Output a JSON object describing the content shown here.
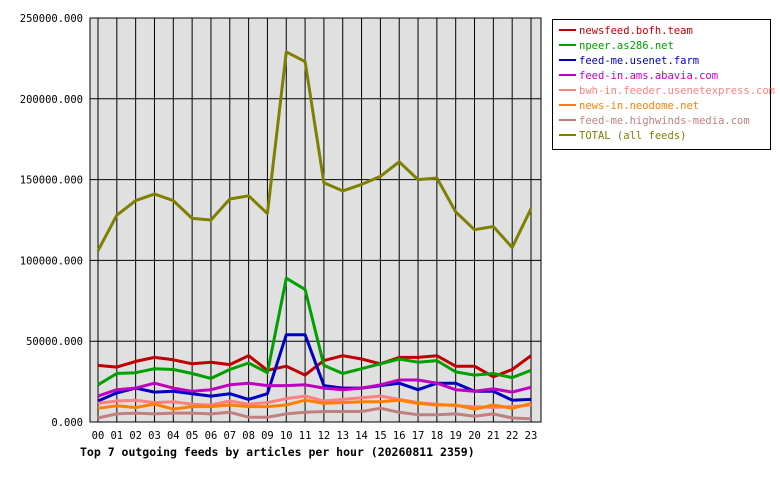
{
  "chart_data": {
    "type": "line",
    "title": "Top 7 outgoing feeds by articles per hour (20260811 2359)",
    "x": [
      "00",
      "01",
      "02",
      "03",
      "04",
      "05",
      "06",
      "07",
      "08",
      "09",
      "10",
      "11",
      "12",
      "13",
      "14",
      "15",
      "16",
      "17",
      "18",
      "19",
      "20",
      "21",
      "22",
      "23"
    ],
    "ylim": [
      0,
      250000
    ],
    "yticks": [
      "0.000",
      "50000.000",
      "100000.000",
      "150000.000",
      "200000.000",
      "250000.000"
    ],
    "ytick_values": [
      0,
      50000,
      100000,
      150000,
      200000,
      250000
    ],
    "grid": true,
    "legend_position": "top-right",
    "series": [
      {
        "name": "newsfeed.bofh.team",
        "color": "#c00000",
        "values": [
          35000,
          34000,
          37500,
          40000,
          38500,
          36000,
          37000,
          35500,
          41000,
          32000,
          34500,
          29000,
          38000,
          41000,
          39000,
          36000,
          40000,
          40000,
          41000,
          34500,
          34500,
          28000,
          32500,
          41000
        ]
      },
      {
        "name": "npeer.as286.net",
        "color": "#00a000",
        "values": [
          23000,
          30000,
          30500,
          33000,
          32500,
          30000,
          27000,
          32500,
          36500,
          30500,
          89000,
          82000,
          35000,
          30000,
          33000,
          36000,
          39000,
          37000,
          38000,
          31000,
          29000,
          30000,
          27500,
          32000
        ]
      },
      {
        "name": "feed-me.usenet.farm",
        "color": "#0000c0",
        "values": [
          13000,
          18000,
          21000,
          18500,
          19000,
          17500,
          16000,
          17500,
          14000,
          17500,
          54000,
          54000,
          22500,
          21000,
          21000,
          22500,
          24000,
          20000,
          24000,
          24000,
          19000,
          19000,
          13500,
          14000
        ]
      },
      {
        "name": "feed-in.ams.abavia.com",
        "color": "#c000c0",
        "values": [
          16000,
          20000,
          21000,
          24000,
          21000,
          19000,
          20000,
          23000,
          24000,
          22500,
          22500,
          23000,
          21000,
          20000,
          21000,
          23000,
          26000,
          26000,
          24000,
          20000,
          19000,
          20500,
          18500,
          21500
        ]
      },
      {
        "name": "bwh-in.feeder.usenetexpress.com",
        "color": "#ff8080",
        "values": [
          11500,
          13000,
          13500,
          12000,
          12500,
          11000,
          10500,
          13000,
          11000,
          12000,
          14500,
          16000,
          13000,
          14000,
          15000,
          16000,
          14000,
          12000,
          11000,
          10000,
          9500,
          9000,
          9500,
          10500
        ]
      },
      {
        "name": "news-in.neodome.net",
        "color": "#ff8000",
        "values": [
          8500,
          10000,
          9000,
          11000,
          8000,
          9500,
          9500,
          10500,
          9500,
          9500,
          10500,
          13500,
          11500,
          12000,
          12500,
          12500,
          13500,
          11500,
          10500,
          10500,
          8000,
          10500,
          8500,
          11500
        ]
      },
      {
        "name": "feed-me.highwinds-media.com",
        "color": "#c08080",
        "values": [
          2500,
          5000,
          5500,
          5000,
          5500,
          5500,
          5000,
          6000,
          3000,
          3000,
          5000,
          6000,
          6500,
          6500,
          6500,
          8500,
          6000,
          4500,
          4500,
          5000,
          3500,
          5000,
          2500,
          2000
        ]
      },
      {
        "name": "TOTAL (all feeds)",
        "color": "#808000",
        "values": [
          106000,
          128000,
          137000,
          141000,
          137000,
          126000,
          125000,
          138000,
          140000,
          129000,
          229000,
          223000,
          148000,
          143000,
          147000,
          152000,
          161000,
          150000,
          151000,
          130000,
          119000,
          121000,
          108000,
          132000
        ]
      }
    ]
  }
}
